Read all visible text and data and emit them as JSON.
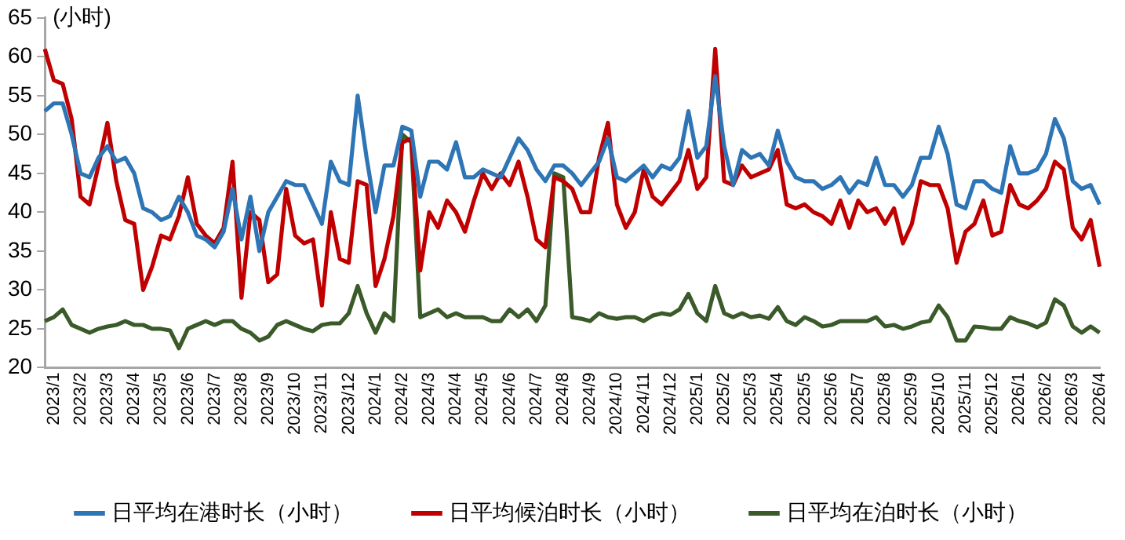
{
  "chart_data": {
    "type": "line",
    "ylabel": "(小时)",
    "legend": "bottom",
    "grid": false,
    "marker": "none",
    "line_style": "solid",
    "categories": [
      null,
      "2023/1",
      null,
      null,
      "2023/2",
      null,
      null,
      "2023/3",
      null,
      null,
      "2023/4",
      null,
      null,
      "2023/5",
      null,
      null,
      "2023/6",
      null,
      null,
      "2023/7",
      null,
      null,
      "2023/8",
      null,
      null,
      "2023/9",
      null,
      null,
      "2023/10",
      null,
      null,
      "2023/11",
      null,
      null,
      "2023/12",
      null,
      null,
      "2024/1",
      null,
      null,
      "2024/2",
      null,
      null,
      "2024/3",
      null,
      null,
      "2024/4",
      null,
      null,
      "2024/5",
      null,
      null,
      "2024/6",
      null,
      null,
      "2024/7",
      null,
      null,
      "2024/8",
      null,
      null,
      "2024/9",
      null,
      null,
      "2024/10",
      null,
      null,
      "2024/11",
      null,
      null,
      "2024/12",
      null,
      null,
      "2025/1",
      null,
      null,
      "2025/2",
      null,
      null,
      "2025/3",
      null,
      null,
      "2025/4",
      null,
      null,
      "2025/5",
      null,
      null,
      "2025/6",
      null,
      null,
      "2025/7",
      null,
      null,
      "2025/8",
      null,
      null,
      "2025/9",
      null,
      null,
      "2025/10",
      null,
      null,
      "2025/11",
      null,
      null,
      "2025/12",
      null,
      null,
      "2026/1",
      null,
      null,
      "2026/2",
      null,
      null,
      "2026/3",
      null,
      null,
      "2026/4"
    ],
    "ylim": [
      20,
      65
    ],
    "yticks": [
      20,
      25,
      30,
      35,
      40,
      45,
      50,
      55,
      60,
      65
    ],
    "series": [
      {
        "name": "日平均在港时长（小时）",
        "color": "#2e75b6",
        "values": [
          53,
          54,
          54,
          50,
          45,
          44.5,
          47,
          48.5,
          46.5,
          47,
          45,
          40.5,
          40,
          39,
          39.5,
          42,
          40,
          37,
          36.5,
          35.5,
          37.5,
          43,
          36.5,
          42,
          35,
          40,
          42,
          44,
          43.5,
          43.5,
          41,
          38.5,
          46.5,
          44,
          43.5,
          55,
          47,
          40,
          46,
          46,
          51,
          50.5,
          42,
          46.5,
          46.5,
          45.5,
          49,
          44.5,
          44.5,
          45.5,
          45,
          44.5,
          47,
          49.5,
          48,
          45.5,
          44,
          46,
          46,
          45,
          43.5,
          45,
          46.5,
          49.5,
          44.5,
          44,
          45,
          46,
          44.5,
          46,
          45.5,
          47,
          53,
          47,
          48.5,
          57.5,
          48.5,
          43.5,
          48,
          47,
          47.5,
          46,
          50.5,
          46.5,
          44.5,
          44,
          44,
          43,
          43.5,
          44.5,
          42.5,
          44,
          43.5,
          47,
          43.5,
          43.5,
          42,
          43.5,
          47,
          47,
          51,
          47.5,
          41,
          40.5,
          44,
          44,
          43,
          42.5,
          48.5,
          45,
          45,
          45.5,
          47.5,
          52,
          49.5,
          44,
          43,
          43.5,
          41
        ]
      },
      {
        "name": "日平均候泊时长（小时）",
        "color": "#c00000",
        "values": [
          61,
          57,
          56.5,
          52,
          42,
          41,
          46,
          51.5,
          44,
          39,
          38.5,
          30,
          33,
          37,
          36.5,
          39.5,
          44.5,
          38.5,
          37,
          36,
          38,
          46.5,
          29,
          40,
          39,
          31,
          32,
          43,
          37,
          36,
          36.5,
          28,
          40,
          34,
          33.5,
          44,
          43.5,
          30.5,
          34,
          39.5,
          49,
          49.5,
          32.5,
          40,
          38,
          41.5,
          40,
          37.5,
          41.5,
          45,
          43,
          45,
          43.5,
          46.5,
          42,
          36.5,
          35.5,
          44.5,
          44,
          43,
          40,
          40,
          47,
          51.5,
          41,
          38,
          40,
          45.5,
          42,
          41,
          42.5,
          44,
          48,
          43,
          44.5,
          61,
          44,
          43.5,
          46,
          44.5,
          45,
          45.5,
          48,
          41,
          40.5,
          41,
          40,
          39.5,
          38.5,
          41.5,
          38,
          41.5,
          40,
          40.5,
          38.5,
          40.5,
          36,
          38.5,
          44,
          43.5,
          43.5,
          40.5,
          33.5,
          37.5,
          38.5,
          41.5,
          37,
          37.5,
          43.5,
          41,
          40.5,
          41.5,
          43,
          46.5,
          45.5,
          38,
          36.5,
          39,
          33
        ]
      },
      {
        "name": "日平均在泊时长（小时）",
        "color": "#3b5a2a",
        "values": [
          26,
          26.5,
          27.5,
          25.5,
          25,
          24.5,
          25,
          25.3,
          25.5,
          26,
          25.5,
          25.5,
          25,
          25,
          24.8,
          22.5,
          25,
          25.5,
          26,
          25.5,
          26,
          26,
          25,
          24.5,
          23.5,
          24,
          25.5,
          26,
          25.5,
          25,
          24.7,
          25.5,
          25.7,
          25.7,
          27,
          30.5,
          27,
          24.5,
          27,
          26,
          50,
          49,
          26.5,
          27,
          27.5,
          26.5,
          27,
          26.5,
          26.5,
          26.5,
          26,
          26,
          27.5,
          26.5,
          27.5,
          26,
          28,
          45,
          44.5,
          26.5,
          26.3,
          26,
          27,
          26.5,
          26.3,
          26.5,
          26.5,
          26,
          26.7,
          27,
          26.8,
          27.5,
          29.5,
          27,
          26,
          30.5,
          27,
          26.5,
          27,
          26.5,
          26.7,
          26.3,
          27.8,
          26,
          25.5,
          26.5,
          26,
          25.3,
          25.5,
          26,
          26,
          26,
          26,
          26.5,
          25.3,
          25.5,
          25,
          25.3,
          25.8,
          26,
          28,
          26.5,
          23.5,
          23.5,
          25.3,
          25.2,
          25,
          25,
          26.5,
          26,
          25.7,
          25.2,
          25.8,
          28.8,
          28,
          25.3,
          24.5,
          25.3,
          24.5
        ]
      }
    ]
  }
}
